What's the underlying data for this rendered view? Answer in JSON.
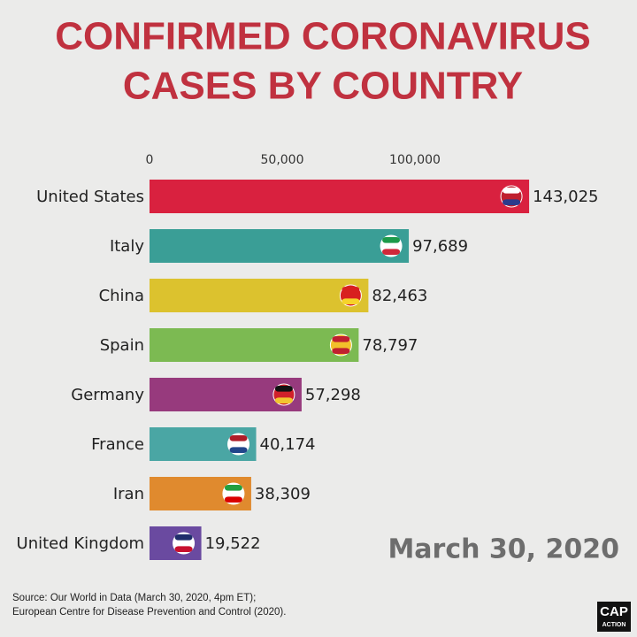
{
  "chart_data": {
    "type": "hbar",
    "title": [
      "CONFIRMED CORONAVIRUS",
      "CASES BY COUNTRY"
    ],
    "categories": [
      "United States",
      "Italy",
      "China",
      "Spain",
      "Germany",
      "France",
      "Iran",
      "United Kingdom"
    ],
    "values": [
      143025,
      97689,
      82463,
      78797,
      57298,
      40174,
      38309,
      19522
    ],
    "value_labels": [
      "143,025",
      "97,689",
      "82,463",
      "78,797",
      "57,298",
      "40,174",
      "38,309",
      "19,522"
    ],
    "colors": [
      "#d9213f",
      "#3a9e96",
      "#dcc22e",
      "#7cba52",
      "#973a7d",
      "#4aa6a4",
      "#e08a2e",
      "#6a4aa0"
    ],
    "xlim": [
      0,
      150000
    ],
    "xticks": [
      0,
      {
        "value": 50000,
        "label": "50,000"
      },
      {
        "value": 100000,
        "label": "100,000"
      }
    ],
    "annotation": "March 30, 2020",
    "source": [
      "Source: Our World in Data (March 30, 2020, 4pm ET);",
      "European Centre for Disease Prevention and Control (2020)."
    ],
    "logo": [
      "CAP",
      "ACTION"
    ]
  }
}
